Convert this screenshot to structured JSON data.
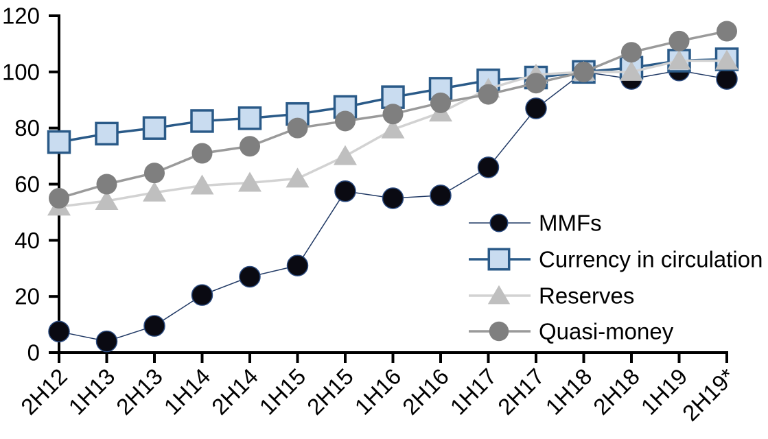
{
  "chart_data": {
    "type": "line",
    "title": "",
    "xlabel": "",
    "ylabel": "",
    "grid": false,
    "legend_position": "inside-right",
    "categories": [
      "2H12",
      "1H13",
      "2H13",
      "1H14",
      "2H14",
      "1H15",
      "2H15",
      "1H16",
      "2H16",
      "1H17",
      "2H17",
      "1H18",
      "2H18",
      "1H19",
      "2H19*"
    ],
    "y_axis": {
      "min": 0,
      "max": 120,
      "step": 20,
      "tick_labels": [
        "0",
        "20",
        "40",
        "60",
        "80",
        "100",
        "120"
      ]
    },
    "series": [
      {
        "name": "MMFs",
        "marker": "circle",
        "marker_fill": "#0a0a12",
        "marker_stroke": "#2a4a7f",
        "marker_stroke_width": 1.5,
        "line_color": "#1f3864",
        "line_width": 1.5,
        "values": [
          7.5,
          4,
          9.5,
          20.5,
          27,
          31,
          57.5,
          55,
          56,
          66,
          87,
          100,
          97.5,
          100.5,
          97.5
        ]
      },
      {
        "name": "Currency in circulation",
        "marker": "square",
        "marker_fill": "#c9dcf0",
        "marker_stroke": "#2a5a88",
        "marker_stroke_width": 3.5,
        "line_color": "#2a5a88",
        "line_width": 3.5,
        "values": [
          75,
          78,
          80,
          82.5,
          83.5,
          85,
          87.5,
          91,
          94,
          97,
          98,
          100,
          101.5,
          104,
          104.5
        ]
      },
      {
        "name": "Reserves",
        "marker": "triangle",
        "marker_fill": "#bfbfbf",
        "marker_stroke": "none",
        "marker_stroke_width": 0,
        "line_color": "#d2d2d2",
        "line_width": 3.5,
        "values": [
          52,
          54,
          57,
          59.5,
          60.5,
          62,
          70,
          79.5,
          85.5,
          94,
          99,
          100,
          100,
          104,
          104
        ]
      },
      {
        "name": "Quasi-money",
        "marker": "circle",
        "marker_fill": "#7f7f7f",
        "marker_stroke": "none",
        "marker_stroke_width": 0,
        "line_color": "#9a9a9a",
        "line_width": 3.5,
        "values": [
          55,
          60,
          64,
          71,
          73.5,
          80,
          82.5,
          85,
          89,
          92,
          96,
          100,
          107,
          111,
          114.5
        ]
      }
    ]
  },
  "colors": {
    "axis": "#000000",
    "text": "#000000",
    "background": "#ffffff"
  }
}
